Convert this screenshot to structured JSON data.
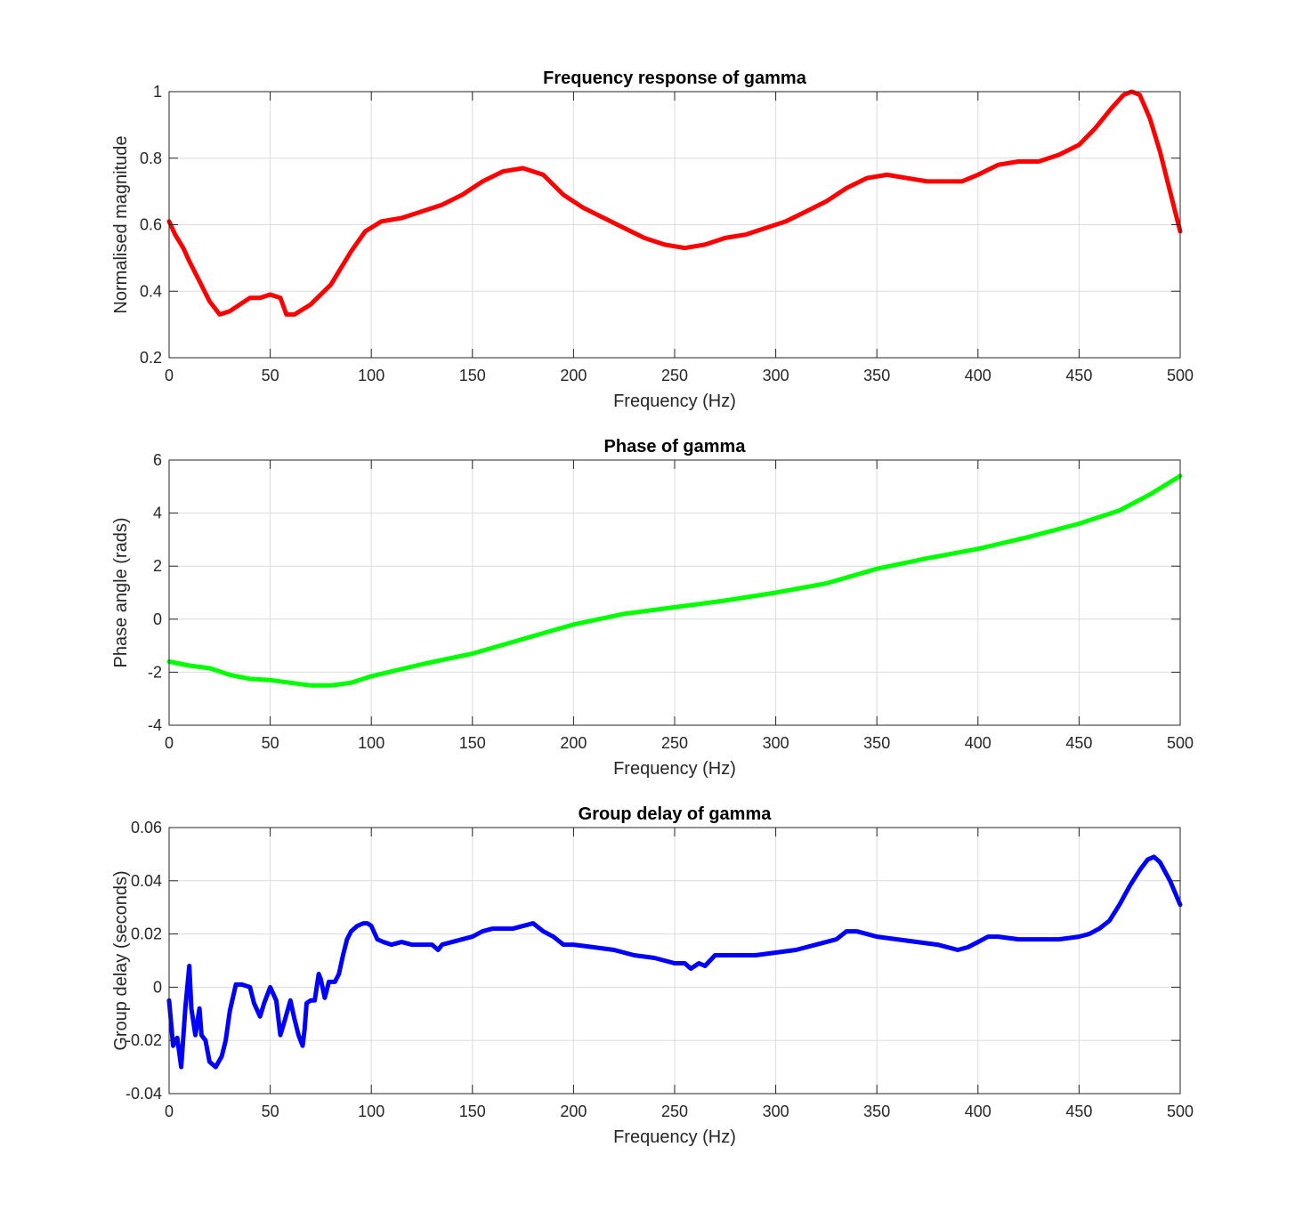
{
  "chart_data": [
    {
      "type": "line",
      "title": "Frequency response of gamma",
      "xlabel": "Frequency (Hz)",
      "ylabel": "Normalised magnitude",
      "xlim": [
        0,
        500
      ],
      "ylim": [
        0.2,
        1.0
      ],
      "xticks": [
        "0",
        "50",
        "100",
        "150",
        "200",
        "250",
        "300",
        "350",
        "400",
        "450",
        "500"
      ],
      "yticks": [
        "0.2",
        "0.4",
        "0.6",
        "0.8",
        "1"
      ],
      "grid": true,
      "series": [
        {
          "color": "#ff0000",
          "x": [
            0,
            3,
            7,
            10,
            15,
            20,
            25,
            30,
            35,
            40,
            45,
            50,
            55,
            58,
            62,
            70,
            80,
            90,
            97,
            105,
            115,
            125,
            135,
            145,
            155,
            165,
            175,
            185,
            195,
            205,
            215,
            225,
            235,
            245,
            255,
            265,
            275,
            285,
            295,
            305,
            315,
            325,
            335,
            345,
            355,
            365,
            375,
            385,
            392,
            400,
            410,
            420,
            430,
            440,
            450,
            458,
            466,
            472,
            476,
            480,
            485,
            490,
            495,
            500
          ],
          "values": [
            0.61,
            0.57,
            0.53,
            0.49,
            0.43,
            0.37,
            0.33,
            0.34,
            0.36,
            0.38,
            0.38,
            0.39,
            0.38,
            0.33,
            0.33,
            0.36,
            0.42,
            0.52,
            0.58,
            0.61,
            0.62,
            0.64,
            0.66,
            0.69,
            0.73,
            0.76,
            0.77,
            0.75,
            0.69,
            0.65,
            0.62,
            0.59,
            0.56,
            0.54,
            0.53,
            0.54,
            0.56,
            0.57,
            0.59,
            0.61,
            0.64,
            0.67,
            0.71,
            0.74,
            0.75,
            0.74,
            0.73,
            0.73,
            0.73,
            0.75,
            0.78,
            0.79,
            0.79,
            0.81,
            0.84,
            0.89,
            0.95,
            0.99,
            1.0,
            0.99,
            0.92,
            0.82,
            0.7,
            0.58
          ]
        }
      ]
    },
    {
      "type": "line",
      "title": "Phase of gamma",
      "xlabel": "Frequency (Hz)",
      "ylabel": "Phase angle (rads)",
      "xlim": [
        0,
        500
      ],
      "ylim": [
        -4,
        6
      ],
      "xticks": [
        "0",
        "50",
        "100",
        "150",
        "200",
        "250",
        "300",
        "350",
        "400",
        "450",
        "500"
      ],
      "yticks": [
        "-4",
        "-2",
        "0",
        "2",
        "4",
        "6"
      ],
      "grid": true,
      "series": [
        {
          "color": "#00ff00",
          "x": [
            0,
            10,
            20,
            30,
            40,
            50,
            60,
            70,
            80,
            90,
            100,
            125,
            150,
            175,
            200,
            225,
            250,
            275,
            300,
            325,
            350,
            375,
            400,
            425,
            450,
            470,
            485,
            500
          ],
          "values": [
            -1.6,
            -1.75,
            -1.85,
            -2.1,
            -2.25,
            -2.3,
            -2.4,
            -2.5,
            -2.5,
            -2.4,
            -2.15,
            -1.7,
            -1.3,
            -0.75,
            -0.2,
            0.2,
            0.45,
            0.7,
            1.0,
            1.35,
            1.9,
            2.3,
            2.65,
            3.1,
            3.6,
            4.1,
            4.7,
            5.4
          ]
        }
      ]
    },
    {
      "type": "line",
      "title": "Group delay of gamma",
      "xlabel": "Frequency (Hz)",
      "ylabel": "Group delay (seconds)",
      "xlim": [
        0,
        500
      ],
      "ylim": [
        -0.04,
        0.06
      ],
      "xticks": [
        "0",
        "50",
        "100",
        "150",
        "200",
        "250",
        "300",
        "350",
        "400",
        "450",
        "500"
      ],
      "yticks": [
        "-0.04",
        "-0.02",
        "0",
        "0.02",
        "0.04",
        "0.06"
      ],
      "grid": true,
      "series": [
        {
          "color": "#0000ff",
          "x": [
            0,
            2,
            4,
            6,
            8,
            10,
            11,
            13,
            15,
            16,
            18,
            20,
            23,
            26,
            28,
            30,
            33,
            36,
            40,
            42,
            45,
            47,
            50,
            53,
            55,
            57,
            60,
            62,
            64,
            66,
            67,
            68,
            70,
            72,
            74,
            75,
            77,
            79,
            82,
            84,
            86,
            88,
            90,
            93,
            96,
            98,
            100,
            103,
            106,
            110,
            115,
            120,
            125,
            130,
            133,
            135,
            140,
            145,
            150,
            155,
            160,
            165,
            170,
            175,
            180,
            185,
            190,
            195,
            200,
            210,
            220,
            230,
            240,
            250,
            255,
            258,
            262,
            265,
            270,
            280,
            290,
            300,
            310,
            320,
            330,
            335,
            340,
            345,
            350,
            360,
            370,
            380,
            390,
            395,
            400,
            405,
            410,
            420,
            430,
            440,
            450,
            455,
            460,
            465,
            470,
            475,
            480,
            484,
            487,
            490,
            495,
            500
          ],
          "values": [
            -0.005,
            -0.022,
            -0.019,
            -0.03,
            -0.008,
            0.008,
            -0.008,
            -0.018,
            -0.008,
            -0.018,
            -0.02,
            -0.028,
            -0.03,
            -0.026,
            -0.02,
            -0.009,
            0.001,
            0.001,
            0.0,
            -0.006,
            -0.011,
            -0.006,
            0.0,
            -0.005,
            -0.018,
            -0.013,
            -0.005,
            -0.012,
            -0.018,
            -0.022,
            -0.016,
            -0.006,
            -0.005,
            -0.005,
            0.005,
            0.003,
            -0.004,
            0.002,
            0.002,
            0.005,
            0.012,
            0.018,
            0.021,
            0.023,
            0.024,
            0.024,
            0.023,
            0.018,
            0.017,
            0.016,
            0.017,
            0.016,
            0.016,
            0.016,
            0.014,
            0.016,
            0.017,
            0.018,
            0.019,
            0.021,
            0.022,
            0.022,
            0.022,
            0.023,
            0.024,
            0.021,
            0.019,
            0.016,
            0.016,
            0.015,
            0.014,
            0.012,
            0.011,
            0.009,
            0.009,
            0.007,
            0.009,
            0.008,
            0.012,
            0.012,
            0.012,
            0.013,
            0.014,
            0.016,
            0.018,
            0.021,
            0.021,
            0.02,
            0.019,
            0.018,
            0.017,
            0.016,
            0.014,
            0.015,
            0.017,
            0.019,
            0.019,
            0.018,
            0.018,
            0.018,
            0.019,
            0.02,
            0.022,
            0.025,
            0.031,
            0.038,
            0.044,
            0.048,
            0.049,
            0.047,
            0.04,
            0.031
          ]
        }
      ]
    }
  ]
}
